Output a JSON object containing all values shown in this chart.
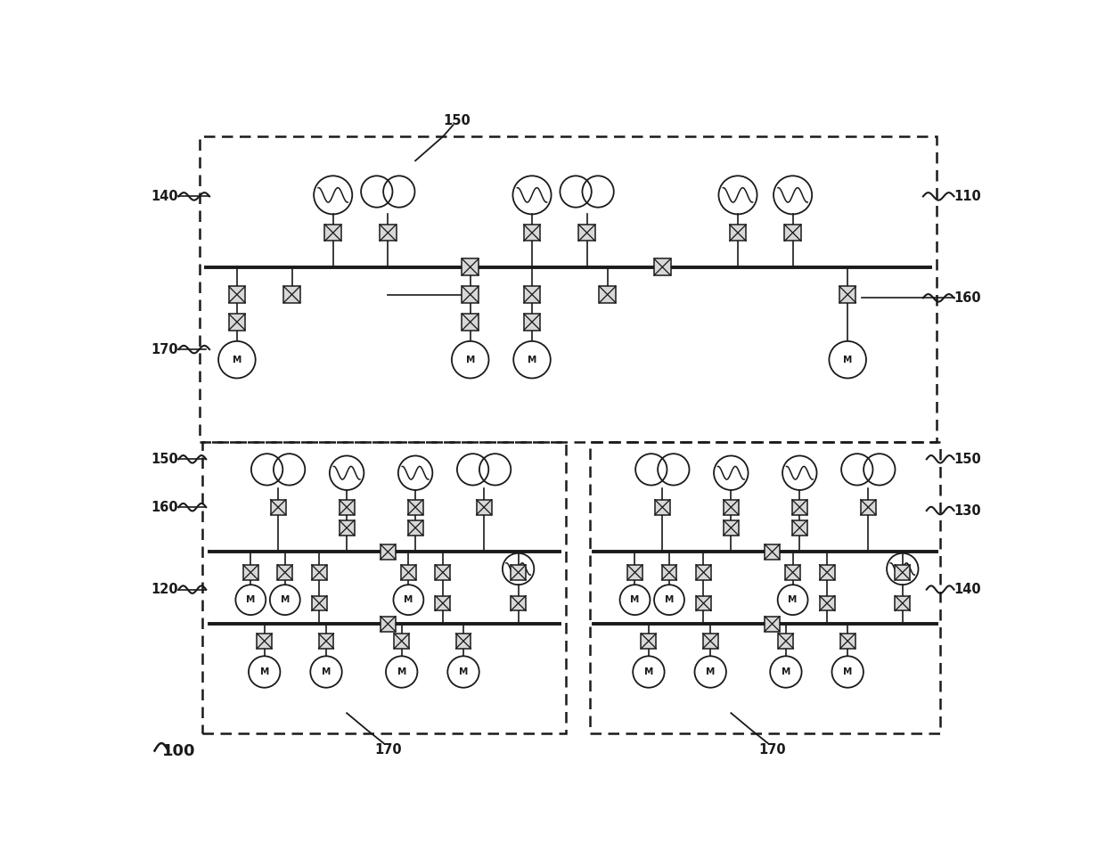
{
  "bg_color": "#ffffff",
  "line_color": "#1a1a1a",
  "fig_width": 12.4,
  "fig_height": 9.64,
  "dpi": 100,
  "xlim": [
    0,
    124
  ],
  "ylim": [
    0,
    96.4
  ]
}
